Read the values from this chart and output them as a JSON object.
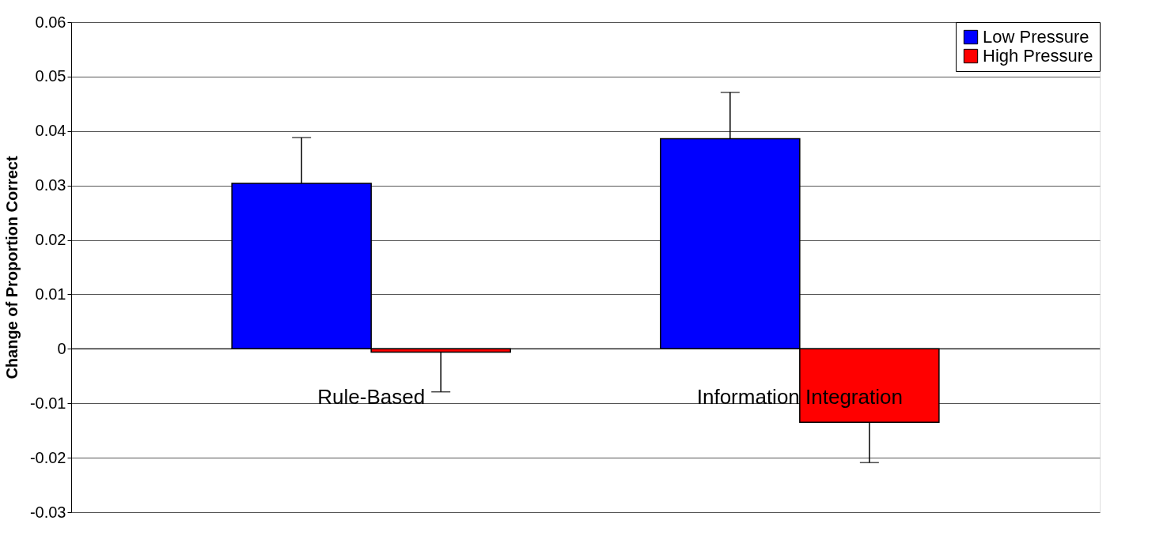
{
  "chart_data": {
    "type": "bar",
    "ylabel": "Change of Proportion Correct",
    "categories": [
      "Rule-Based",
      "Information Integration"
    ],
    "series": [
      {
        "name": "Low Pressure",
        "color": "#0000ff",
        "values": [
          0.0304,
          0.0386
        ],
        "errors": [
          [
            0.0304,
            0.0388
          ],
          [
            0.0386,
            0.0471
          ]
        ]
      },
      {
        "name": "High Pressure",
        "color": "#ff0000",
        "values": [
          -0.0006,
          -0.0135
        ],
        "errors": [
          [
            -0.0079,
            -0.0006
          ],
          [
            -0.0209,
            -0.0135
          ]
        ]
      }
    ],
    "ylim": [
      -0.03,
      0.06
    ],
    "yticks": [
      -0.03,
      -0.02,
      -0.01,
      0,
      0.01,
      0.02,
      0.03,
      0.04,
      0.05,
      0.06
    ],
    "grid": "y",
    "legend": "top right"
  }
}
